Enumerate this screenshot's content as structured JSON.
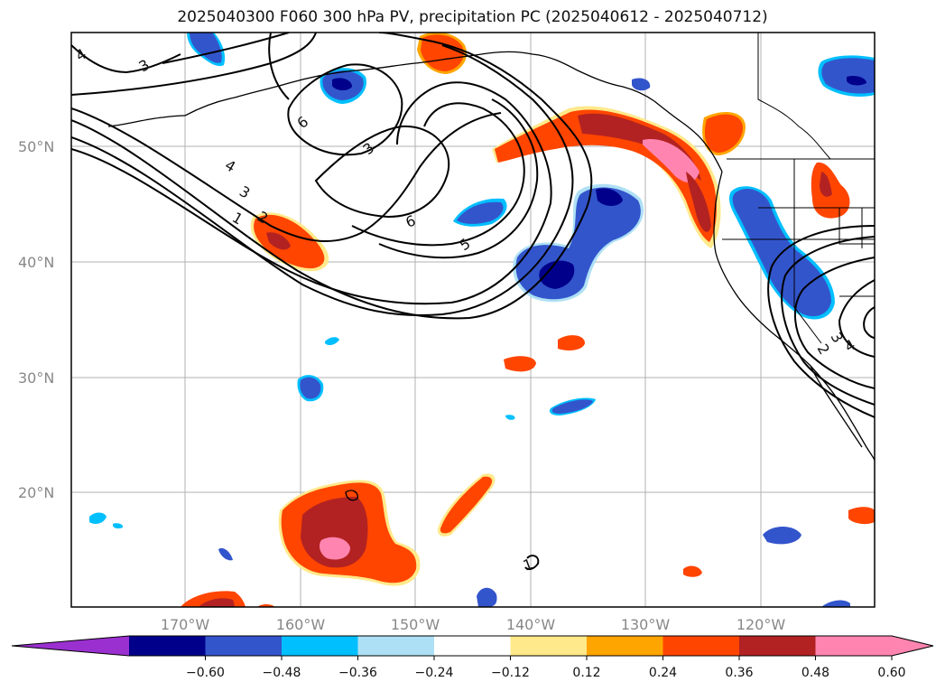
{
  "title": "2025040300 F060 300 hPa PV, precipitation PC (2025040612 - 2025040712)",
  "map": {
    "lat_labels": [
      "50°N",
      "40°N",
      "30°N",
      "20°N"
    ],
    "lon_labels": [
      "170°W",
      "160°W",
      "150°W",
      "140°W",
      "130°W",
      "120°W"
    ],
    "contour_labels": [
      "4",
      "3",
      "6",
      "1",
      "2",
      "4",
      "3",
      "3",
      "6",
      "5",
      "3",
      "2",
      "4",
      "1"
    ]
  },
  "colorbar": {
    "tick_labels": [
      "−0.60",
      "−0.48",
      "−0.36",
      "−0.24",
      "−0.12",
      "0.12",
      "0.24",
      "0.36",
      "0.48",
      "0.60"
    ],
    "colors": {
      "under": "#9b30d0",
      "bins": [
        "#00008b",
        "#3355cc",
        "#00bfff",
        "#aee0f5",
        "#ffffff",
        "#ffe98a",
        "#ffa500",
        "#ff4500",
        "#b22222",
        "#ff85b0"
      ],
      "over": "#ff85b0"
    }
  }
}
